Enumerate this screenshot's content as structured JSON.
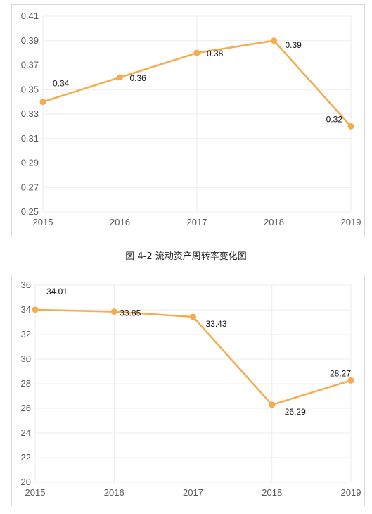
{
  "caption": "图 4-2  流动资产周转率变化图",
  "chart_data": [
    {
      "type": "line",
      "x": [
        "2015",
        "2016",
        "2017",
        "2018",
        "2019"
      ],
      "values": [
        0.34,
        0.36,
        0.38,
        0.39,
        0.32
      ],
      "labels": [
        "0.34",
        "0.36",
        "0.38",
        "0.39",
        "0.32"
      ],
      "ylim": [
        0.25,
        0.41
      ],
      "yticks": [
        "0.25",
        "0.27",
        "0.29",
        "0.31",
        "0.33",
        "0.35",
        "0.37",
        "0.39",
        "0.41"
      ],
      "grid": true,
      "color": "#F4AC4E",
      "title": "",
      "xlabel": "",
      "ylabel": ""
    },
    {
      "type": "line",
      "x": [
        "2015",
        "2016",
        "2017",
        "2018",
        "2019"
      ],
      "values": [
        34.01,
        33.85,
        33.43,
        26.29,
        28.27
      ],
      "labels": [
        "34.01",
        "33.85",
        "33.43",
        "26.29",
        "28.27"
      ],
      "ylim": [
        20,
        36
      ],
      "yticks": [
        "20",
        "22",
        "24",
        "26",
        "28",
        "30",
        "32",
        "34",
        "36"
      ],
      "grid": true,
      "color": "#F4AC4E",
      "title": "",
      "xlabel": "",
      "ylabel": ""
    }
  ]
}
